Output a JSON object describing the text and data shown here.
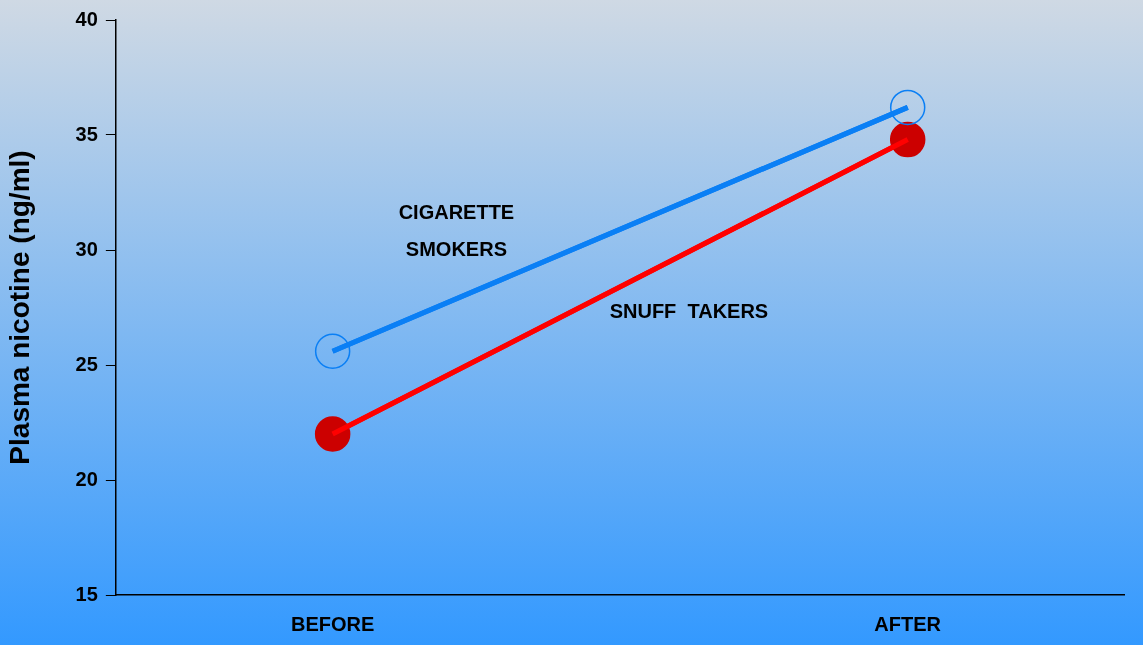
{
  "chart_data": {
    "type": "line",
    "ylabel": "Plasma nicotine (ng/ml)",
    "categories": [
      "BEFORE",
      "AFTER"
    ],
    "series": [
      {
        "name": "CIGARETTE SMOKERS",
        "color": "#0a7ff5",
        "values": [
          25.6,
          36.2
        ],
        "marker": "circle"
      },
      {
        "name": "SNUFF  TAKERS",
        "color": "#ff0000",
        "values": [
          22.0,
          34.8
        ],
        "marker": "circle"
      }
    ],
    "ylim": [
      15,
      40
    ],
    "yticks": [
      15,
      20,
      25,
      30,
      35,
      40
    ],
    "grid": false,
    "legend": false,
    "line_style": "solid"
  }
}
